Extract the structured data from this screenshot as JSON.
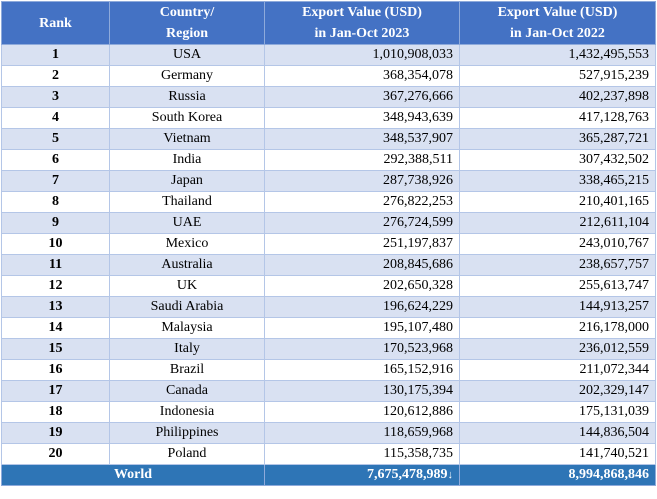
{
  "header": {
    "rank": "Rank",
    "country_line1": "Country/",
    "country_line2": "Region",
    "v2023_line1": "Export Value (USD)",
    "v2023_line2": "in Jan-Oct 2023",
    "v2022_line1": "Export Value (USD)",
    "v2022_line2": "in Jan-Oct 2022"
  },
  "rows": [
    {
      "rank": "1",
      "country": "USA",
      "v2023": "1,010,908,033",
      "v2022": "1,432,495,553"
    },
    {
      "rank": "2",
      "country": "Germany",
      "v2023": "368,354,078",
      "v2022": "527,915,239"
    },
    {
      "rank": "3",
      "country": "Russia",
      "v2023": "367,276,666",
      "v2022": "402,237,898"
    },
    {
      "rank": "4",
      "country": "South Korea",
      "v2023": "348,943,639",
      "v2022": "417,128,763"
    },
    {
      "rank": "5",
      "country": "Vietnam",
      "v2023": "348,537,907",
      "v2022": "365,287,721"
    },
    {
      "rank": "6",
      "country": "India",
      "v2023": "292,388,511",
      "v2022": "307,432,502"
    },
    {
      "rank": "7",
      "country": "Japan",
      "v2023": "287,738,926",
      "v2022": "338,465,215"
    },
    {
      "rank": "8",
      "country": "Thailand",
      "v2023": "276,822,253",
      "v2022": "210,401,165"
    },
    {
      "rank": "9",
      "country": "UAE",
      "v2023": "276,724,599",
      "v2022": "212,611,104"
    },
    {
      "rank": "10",
      "country": "Mexico",
      "v2023": "251,197,837",
      "v2022": "243,010,767"
    },
    {
      "rank": "11",
      "country": "Australia",
      "v2023": "208,845,686",
      "v2022": "238,657,757"
    },
    {
      "rank": "12",
      "country": "UK",
      "v2023": "202,650,328",
      "v2022": "255,613,747"
    },
    {
      "rank": "13",
      "country": "Saudi Arabia",
      "v2023": "196,624,229",
      "v2022": "144,913,257"
    },
    {
      "rank": "14",
      "country": "Malaysia",
      "v2023": "195,107,480",
      "v2022": "216,178,000"
    },
    {
      "rank": "15",
      "country": "Italy",
      "v2023": "170,523,968",
      "v2022": "236,012,559"
    },
    {
      "rank": "16",
      "country": "Brazil",
      "v2023": "165,152,916",
      "v2022": "211,072,344"
    },
    {
      "rank": "17",
      "country": "Canada",
      "v2023": "130,175,394",
      "v2022": "202,329,147"
    },
    {
      "rank": "18",
      "country": "Indonesia",
      "v2023": "120,612,886",
      "v2022": "175,131,039"
    },
    {
      "rank": "19",
      "country": "Philippines",
      "v2023": "118,659,968",
      "v2022": "144,836,504"
    },
    {
      "rank": "20",
      "country": "Poland",
      "v2023": "115,358,735",
      "v2022": "141,740,521"
    }
  ],
  "total": {
    "label": "World",
    "v2023": "7,675,478,989",
    "v2023_marker": "↓",
    "v2022": "8,994,868,846"
  },
  "colors": {
    "header_bg": "#4472c4",
    "band": "#d9e1f2",
    "total_bg": "#2e75b6"
  }
}
